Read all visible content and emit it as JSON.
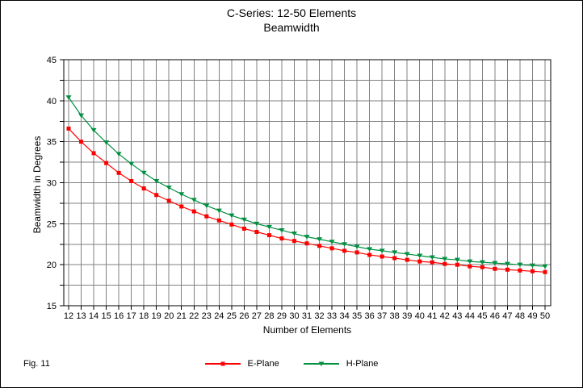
{
  "figure": {
    "title": "C-Series: 12-50 Elements",
    "subtitle": "Beamwidth",
    "x_axis_title": "Number of Elements",
    "y_axis_title": "Beamwidth in Degrees",
    "fig_label": "Fig. 11"
  },
  "colors": {
    "e_plane": "#FF0000",
    "h_plane": "#009040",
    "gridline": "#808080",
    "frame": "#000000",
    "background": "#FFFFFF"
  },
  "chart_data": {
    "type": "line",
    "title": "C-Series: 12-50 Elements",
    "subtitle": "Beamwidth",
    "xlabel": "Number of Elements",
    "ylabel": "Beamwidth in Degrees",
    "x": [
      12,
      13,
      14,
      15,
      16,
      17,
      18,
      19,
      20,
      21,
      22,
      23,
      24,
      25,
      26,
      27,
      28,
      29,
      30,
      31,
      32,
      33,
      34,
      35,
      36,
      37,
      38,
      39,
      40,
      41,
      42,
      43,
      44,
      45,
      46,
      47,
      48,
      49,
      50
    ],
    "ylim": [
      15,
      45
    ],
    "y_major_ticks": [
      15,
      20,
      25,
      30,
      35,
      40,
      45
    ],
    "y_minor_step": 2.5,
    "grid": true,
    "legend_position": "bottom",
    "series": [
      {
        "name": "E-Plane",
        "marker": "square",
        "color": "#FF0000",
        "values": [
          36.6,
          35.0,
          33.6,
          32.4,
          31.2,
          30.2,
          29.3,
          28.5,
          27.8,
          27.1,
          26.5,
          25.9,
          25.4,
          24.9,
          24.4,
          24.0,
          23.6,
          23.2,
          22.9,
          22.6,
          22.3,
          22.0,
          21.7,
          21.5,
          21.2,
          21.0,
          20.8,
          20.6,
          20.4,
          20.3,
          20.1,
          20.0,
          19.8,
          19.7,
          19.5,
          19.4,
          19.3,
          19.2,
          19.1
        ]
      },
      {
        "name": "H-Plane",
        "marker": "triangle-down",
        "color": "#009040",
        "values": [
          40.4,
          38.2,
          36.4,
          34.9,
          33.5,
          32.3,
          31.2,
          30.2,
          29.4,
          28.6,
          27.9,
          27.2,
          26.6,
          26.0,
          25.5,
          25.0,
          24.6,
          24.2,
          23.8,
          23.4,
          23.1,
          22.8,
          22.5,
          22.2,
          21.9,
          21.7,
          21.5,
          21.3,
          21.1,
          20.9,
          20.7,
          20.6,
          20.4,
          20.3,
          20.2,
          20.1,
          20.0,
          19.9,
          19.8
        ]
      }
    ]
  }
}
